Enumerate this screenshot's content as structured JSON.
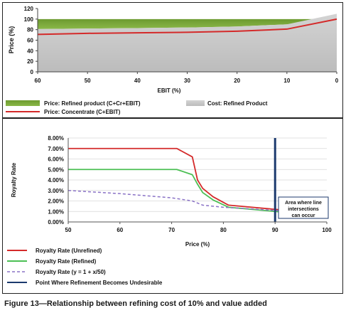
{
  "caption": "Figure 13—Relationship between refining cost of 10% and value added",
  "top_chart_ticks": {
    "y": [
      "120",
      "100",
      "80",
      "60",
      "40",
      "20",
      "0"
    ],
    "x": [
      "60",
      "50",
      "40",
      "30",
      "20",
      "10",
      "0"
    ]
  },
  "bottom_chart_ticks": {
    "y": [
      "8.00%",
      "7.00%",
      "6.00%",
      "5.00%",
      "4.00%",
      "3.00%",
      "2.00%",
      "1.00%",
      "0.00%"
    ],
    "x": [
      "50",
      "60",
      "70",
      "80",
      "90",
      "100"
    ]
  },
  "annotation_lines": [
    "Area where line",
    "intersections",
    "can occur"
  ],
  "colors": {
    "green_fill": "#7aaa3a",
    "grey_fill": "#c6c6c6",
    "red": "#d42a2a",
    "green_line": "#4cbf54",
    "purple_dash": "#8a72c6",
    "navy": "#1c3a6e"
  },
  "chart_data": [
    {
      "type": "area",
      "title": "",
      "xlabel": "EBIT (%)",
      "ylabel": "Price (%)",
      "xlim": [
        60,
        0
      ],
      "ylim": [
        0,
        120
      ],
      "x": [
        60,
        50,
        40,
        30,
        20,
        10,
        0
      ],
      "series": [
        {
          "name": "Price: Refined product (C+Cr+EBIT)",
          "kind": "area",
          "color": "#7aaa3a",
          "values": [
            100,
            100,
            100,
            100,
            100,
            100,
            100
          ]
        },
        {
          "name": "Cost: Refined Product",
          "kind": "area",
          "color": "#c6c6c6",
          "values": [
            81,
            82,
            83,
            84,
            86,
            90,
            110
          ]
        },
        {
          "name": "Price: Concentrate (C+EBIT)",
          "kind": "line",
          "color": "#d42a2a",
          "values": [
            71,
            73,
            74,
            75,
            77,
            81,
            100
          ]
        }
      ],
      "grid": false,
      "legend": "bottom"
    },
    {
      "type": "line",
      "title": "",
      "xlabel": "Price (%)",
      "ylabel": "Royalty Rate",
      "xlim": [
        50,
        100
      ],
      "ylim": [
        0,
        8
      ],
      "series": [
        {
          "name": "Royalty Rate (Unrefined)",
          "color": "#d42a2a",
          "dash": false,
          "x": [
            50,
            71,
            74,
            75,
            76,
            78,
            81,
            90,
            100
          ],
          "values": [
            7.0,
            7.0,
            6.2,
            4.0,
            3.2,
            2.4,
            1.6,
            1.2,
            0.8
          ]
        },
        {
          "name": "Royalty Rate (Refined)",
          "color": "#4cbf54",
          "dash": false,
          "x": [
            50,
            71,
            74,
            75,
            76,
            78,
            81,
            90,
            100
          ],
          "values": [
            5.0,
            5.0,
            4.5,
            3.6,
            2.8,
            2.1,
            1.4,
            1.0,
            0.6
          ]
        },
        {
          "name": "Royalty Rate (y = 1 + x/50)",
          "color": "#8a72c6",
          "dash": true,
          "x": [
            50,
            60,
            70,
            74,
            76,
            80,
            90,
            100
          ],
          "values": [
            3.0,
            2.7,
            2.3,
            2.0,
            1.6,
            1.4,
            1.1,
            0.8
          ]
        },
        {
          "name": "Point Where Refinement Becomes Undesirable",
          "color": "#1c3a6e",
          "kind": "vline",
          "x": [
            90,
            90
          ],
          "values": [
            0,
            8
          ]
        }
      ],
      "annotation": "Area where line intersections can occur",
      "grid": true,
      "legend": "bottom"
    }
  ]
}
